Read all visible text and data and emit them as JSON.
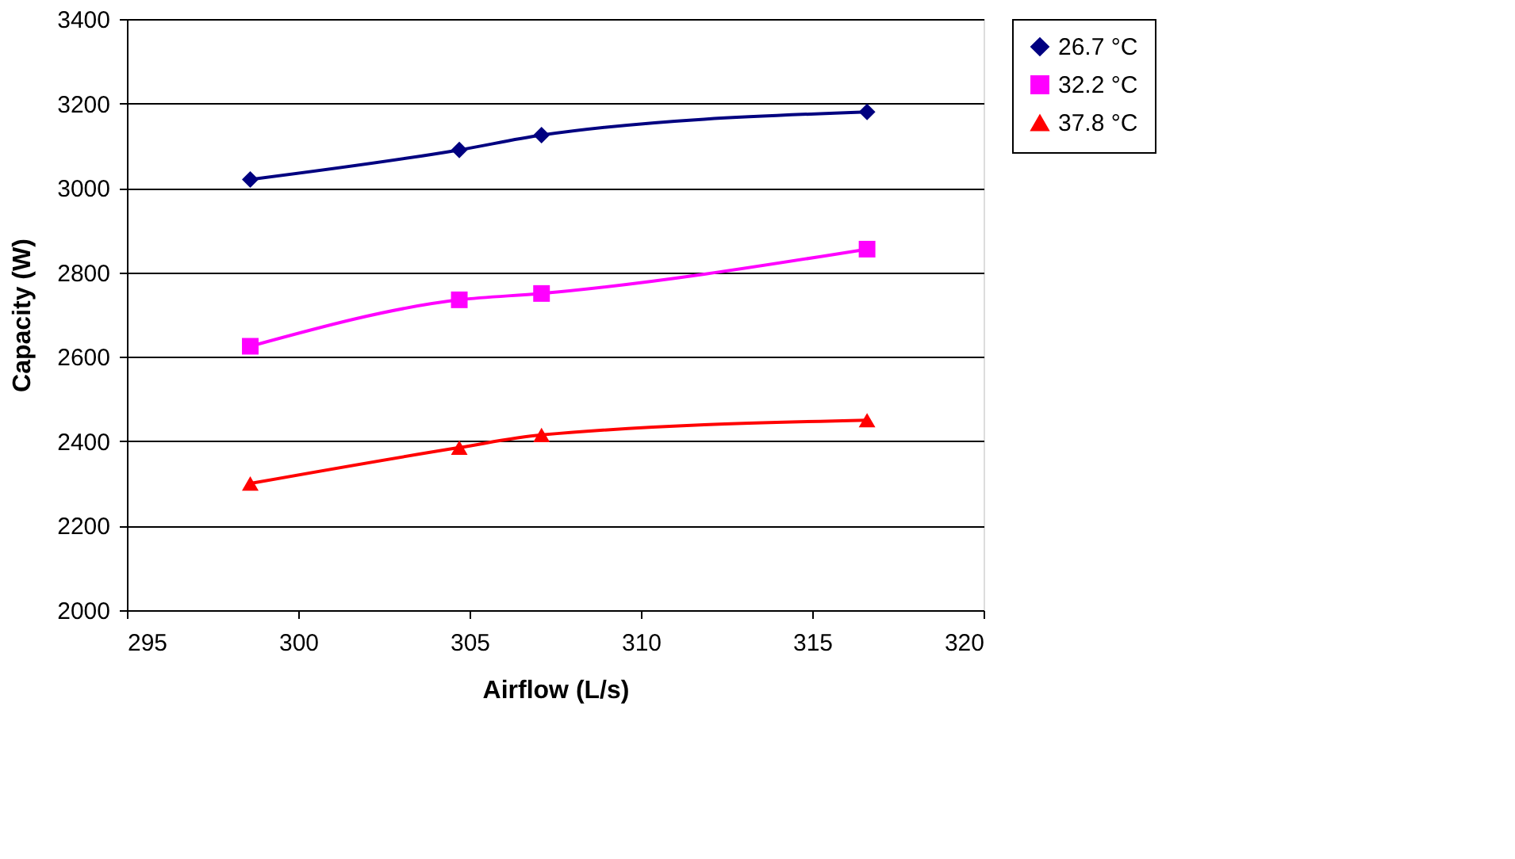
{
  "chart_data": {
    "type": "line",
    "xlabel": "Airflow (L/s)",
    "ylabel": "Capacity (W)",
    "xlim": [
      295,
      320
    ],
    "xticks": [
      295,
      300,
      305,
      310,
      315,
      320
    ],
    "ylim": [
      2000,
      3400
    ],
    "yticks": [
      2000,
      2200,
      2400,
      2600,
      2800,
      3000,
      3200,
      3400
    ],
    "grid": "y",
    "legend": "right",
    "line_style": "solid",
    "x": [
      298.6,
      304.7,
      307.1,
      316.6
    ],
    "series": [
      {
        "name": "26.7 °C",
        "color": "#000080",
        "marker": "diamond",
        "values": [
          3020,
          3090,
          3125,
          3180
        ]
      },
      {
        "name": "32.2 °C",
        "color": "#ff00ff",
        "marker": "square",
        "values": [
          2625,
          2735,
          2750,
          2855
        ]
      },
      {
        "name": "37.8 °C",
        "color": "#ff0000",
        "marker": "triangle",
        "values": [
          2300,
          2385,
          2415,
          2450
        ]
      }
    ]
  }
}
